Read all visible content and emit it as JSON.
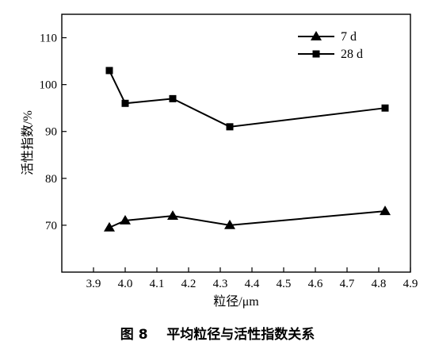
{
  "chart_data": {
    "type": "line",
    "title": "",
    "xlabel": "粒径/μm",
    "ylabel": "活性指数/%",
    "xlim": [
      3.8,
      4.9
    ],
    "ylim": [
      60,
      115
    ],
    "xticks": [
      "3.9",
      "4.0",
      "4.1",
      "4.2",
      "4.3",
      "4.4",
      "4.5",
      "4.6",
      "4.7",
      "4.8",
      "4.9"
    ],
    "yticks": [
      "70",
      "80",
      "90",
      "100",
      "110"
    ],
    "legend_position": "top-right",
    "grid": false,
    "series": [
      {
        "name": "7 d",
        "marker": "triangle",
        "color": "#000000",
        "x": [
          3.95,
          4.0,
          4.15,
          4.33,
          4.82
        ],
        "y": [
          69.5,
          71,
          72,
          70,
          73
        ]
      },
      {
        "name": "28 d",
        "marker": "square",
        "color": "#000000",
        "x": [
          3.95,
          4.0,
          4.15,
          4.33,
          4.82
        ],
        "y": [
          103,
          96,
          97,
          91,
          95
        ]
      }
    ]
  },
  "caption": {
    "figure_number": "图 8",
    "text": "平均粒径与活性指数关系"
  }
}
